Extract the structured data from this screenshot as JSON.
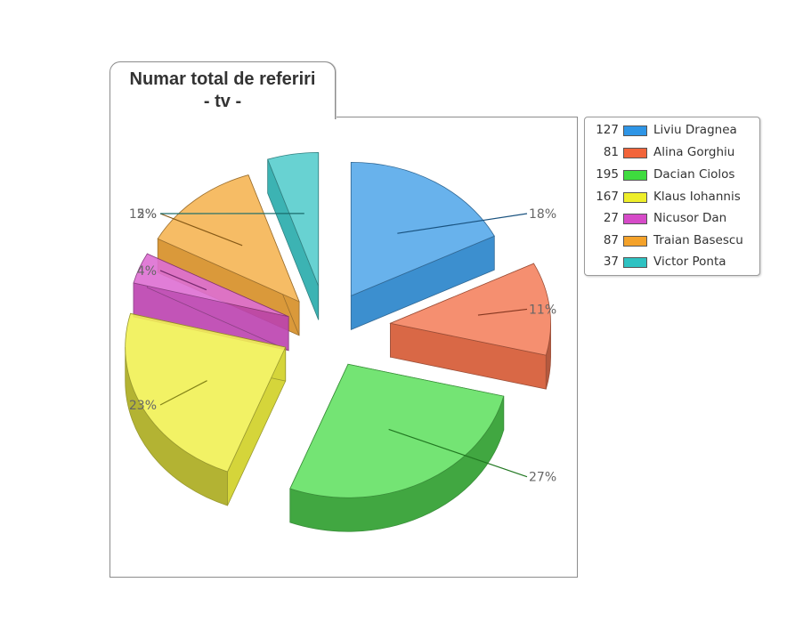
{
  "chart_data": {
    "type": "pie",
    "style": "3d-exploded",
    "title_line1": "Numar total de referiri",
    "title_line2": "- tv -",
    "slices": [
      {
        "name": "Liviu Dragnea",
        "value": 127,
        "percent_label": "18%",
        "color": "#2E95E6"
      },
      {
        "name": "Alina Gorghiu",
        "value": 81,
        "percent_label": "11%",
        "color": "#F2643A"
      },
      {
        "name": "Dacian Ciolos",
        "value": 195,
        "percent_label": "27%",
        "color": "#3EDB3E"
      },
      {
        "name": "Klaus Iohannis",
        "value": 167,
        "percent_label": "23%",
        "color": "#EEEE2A"
      },
      {
        "name": "Nicusor Dan",
        "value": 27,
        "percent_label": "4%",
        "color": "#D64BC8"
      },
      {
        "name": "Traian Basescu",
        "value": 87,
        "percent_label": "12%",
        "color": "#F4A22A"
      },
      {
        "name": "Victor Ponta",
        "value": 37,
        "percent_label": "5%",
        "color": "#2EC2C2"
      }
    ],
    "legend_position": "right"
  }
}
